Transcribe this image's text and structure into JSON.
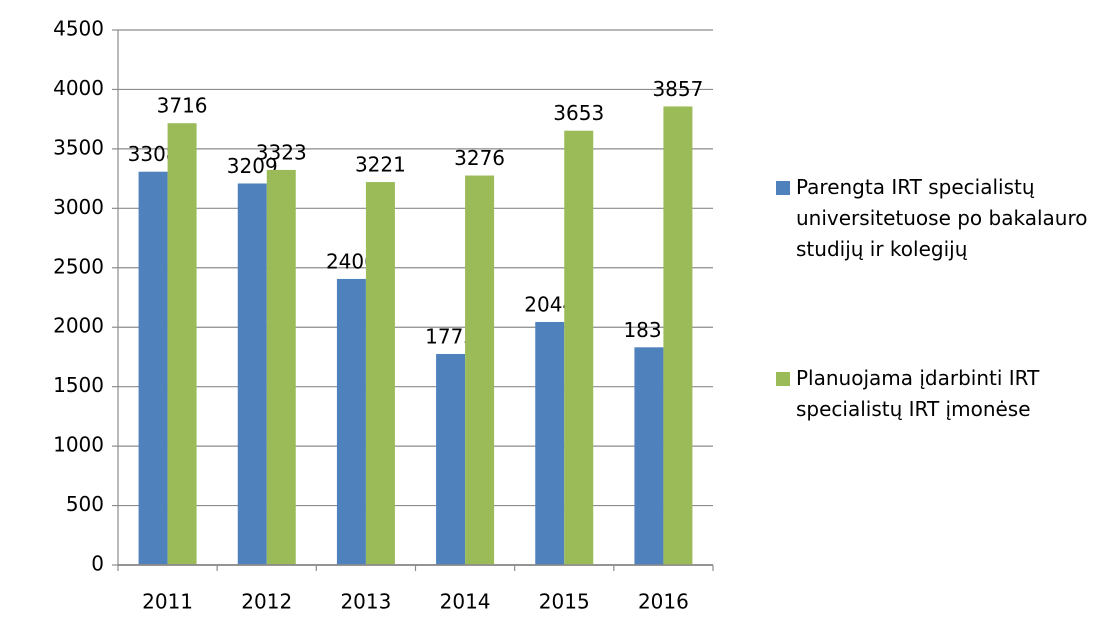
{
  "chart_data": {
    "type": "bar",
    "categories": [
      "2011",
      "2012",
      "2013",
      "2014",
      "2015",
      "2016"
    ],
    "series": [
      {
        "name": "Parengta IRT specialistų universitetuose po bakalauro studijų ir kolegijų",
        "color": "#4f81bd",
        "values": [
          3308,
          3209,
          2406,
          1775,
          2044,
          1831
        ]
      },
      {
        "name": "Planuojama įdarbinti IRT specialistų IRT įmonėse",
        "color": "#9bbb59",
        "values": [
          3716,
          3323,
          3221,
          3276,
          3653,
          3857
        ]
      }
    ],
    "ylim": [
      0,
      4500
    ],
    "yticks": [
      0,
      500,
      1000,
      1500,
      2000,
      2500,
      3000,
      3500,
      4000,
      4500
    ],
    "grid": true,
    "legend": "right"
  }
}
